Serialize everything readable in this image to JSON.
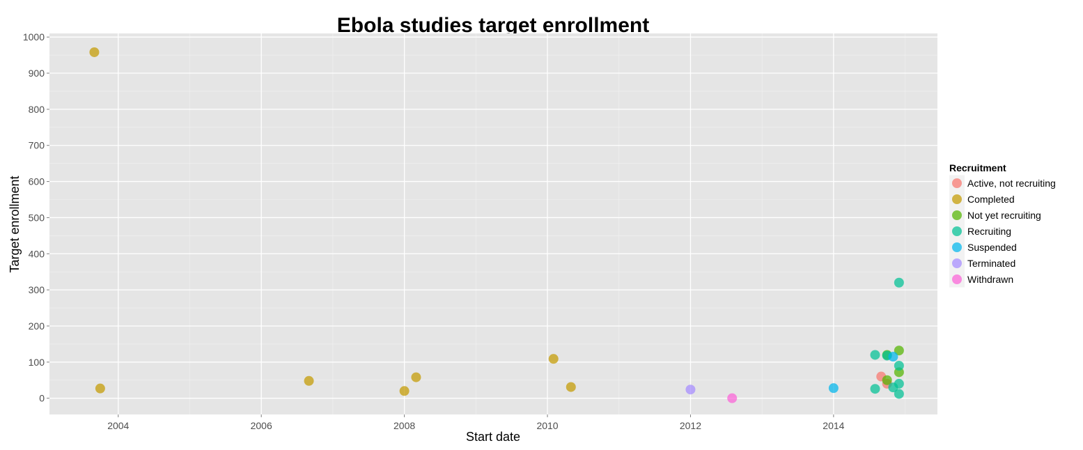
{
  "chart_data": {
    "type": "scatter",
    "title": "Ebola studies target enrollment",
    "xlabel": "Start date",
    "ylabel": "Target enrollment",
    "x_ticks": [
      "2004",
      "2006",
      "2008",
      "2010",
      "2012",
      "2014"
    ],
    "y_ticks": [
      "0",
      "100",
      "200",
      "300",
      "400",
      "500",
      "600",
      "700",
      "800",
      "900",
      "1000"
    ],
    "xlim": [
      "2003-01-15",
      "2015-06-15"
    ],
    "ylim": [
      -45,
      1010
    ],
    "grid": true,
    "legend_title": "Recruitment",
    "legend_position": "right",
    "series": [
      {
        "name": "Active, not recruiting",
        "color": "#F8766D",
        "points": [
          {
            "x": "2014-09-01",
            "y": 60
          },
          {
            "x": "2014-10-01",
            "y": 40
          }
        ]
      },
      {
        "name": "Completed",
        "color": "#C49A00",
        "points": [
          {
            "x": "2003-09-01",
            "y": 958
          },
          {
            "x": "2003-10-01",
            "y": 27
          },
          {
            "x": "2006-09-01",
            "y": 48
          },
          {
            "x": "2008-01-01",
            "y": 20
          },
          {
            "x": "2008-03-01",
            "y": 58
          },
          {
            "x": "2010-02-01",
            "y": 109
          },
          {
            "x": "2010-05-01",
            "y": 31
          }
        ]
      },
      {
        "name": "Not yet recruiting",
        "color": "#53B400",
        "points": [
          {
            "x": "2014-10-01",
            "y": 50
          },
          {
            "x": "2014-10-01",
            "y": 120
          },
          {
            "x": "2014-12-01",
            "y": 132
          },
          {
            "x": "2014-12-01",
            "y": 72
          }
        ]
      },
      {
        "name": "Recruiting",
        "color": "#00C094",
        "points": [
          {
            "x": "2014-08-01",
            "y": 120
          },
          {
            "x": "2014-10-01",
            "y": 118
          },
          {
            "x": "2014-12-01",
            "y": 320
          },
          {
            "x": "2014-12-01",
            "y": 90
          },
          {
            "x": "2014-12-01",
            "y": 40
          },
          {
            "x": "2014-11-01",
            "y": 30
          },
          {
            "x": "2014-08-01",
            "y": 26
          },
          {
            "x": "2014-12-01",
            "y": 12
          }
        ]
      },
      {
        "name": "Suspended",
        "color": "#00B6EB",
        "points": [
          {
            "x": "2014-11-01",
            "y": 115
          },
          {
            "x": "2014-01-01",
            "y": 28
          }
        ]
      },
      {
        "name": "Terminated",
        "color": "#A58AFF",
        "points": [
          {
            "x": "2012-01-01",
            "y": 24
          }
        ]
      },
      {
        "name": "Withdrawn",
        "color": "#FB61D7",
        "points": [
          {
            "x": "2012-08-01",
            "y": 0
          }
        ]
      }
    ]
  }
}
